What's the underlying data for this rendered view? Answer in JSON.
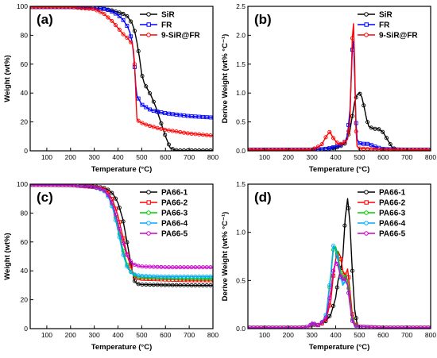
{
  "chart_data": [
    {
      "panel": "(a)",
      "type": "line",
      "xlabel": "Temperature (°C)",
      "ylabel": "Weight (wt%)",
      "xlim": [
        30,
        800
      ],
      "ylim": [
        0,
        100
      ],
      "xticks": [
        100,
        200,
        300,
        400,
        500,
        600,
        700,
        800
      ],
      "yticks": [
        0,
        20,
        40,
        60,
        80,
        100
      ],
      "legend_position": "top-right",
      "series": [
        {
          "name": "SiR",
          "color": "#000000",
          "x": [
            30,
            200,
            300,
            350,
            380,
            400,
            420,
            440,
            460,
            470,
            480,
            490,
            500,
            510,
            520,
            540,
            560,
            580,
            600,
            620,
            640,
            660,
            700,
            800
          ],
          "y": [
            99.5,
            99.5,
            99,
            98,
            97,
            96,
            95,
            93,
            88,
            83,
            75,
            65,
            53,
            47,
            44,
            38,
            30,
            20,
            10,
            2,
            0.5,
            0.3,
            0.3,
            0.3
          ]
        },
        {
          "name": "FR",
          "color": "#0000ff",
          "x": [
            30,
            200,
            300,
            350,
            380,
            400,
            420,
            440,
            450,
            460,
            465,
            470,
            475,
            480,
            490,
            500,
            540,
            600,
            700,
            800
          ],
          "y": [
            99.5,
            99.5,
            99,
            98,
            96,
            94,
            91,
            86,
            82,
            75,
            68,
            58,
            45,
            38,
            35,
            32,
            28,
            26,
            24,
            23
          ]
        },
        {
          "name": "9-SiR@FR",
          "color": "#ff0000",
          "x": [
            30,
            200,
            300,
            340,
            360,
            380,
            400,
            420,
            440,
            450,
            460,
            465,
            470,
            475,
            478,
            480,
            490,
            520,
            560,
            600,
            700,
            800
          ],
          "y": [
            99.5,
            99.5,
            98,
            95,
            92,
            89,
            85,
            81,
            78,
            76,
            74,
            70,
            60,
            40,
            28,
            22,
            20,
            18,
            16,
            14.5,
            12,
            10.5
          ]
        }
      ]
    },
    {
      "panel": "(b)",
      "type": "line",
      "xlabel": "Temperature (°C)",
      "ylabel": "Derive Weight (wt% °C⁻¹)",
      "xlim": [
        30,
        800
      ],
      "ylim": [
        0,
        2.5
      ],
      "xticks": [
        100,
        200,
        300,
        400,
        500,
        600,
        700,
        800
      ],
      "yticks": [
        0.0,
        0.5,
        1.0,
        1.5,
        2.0,
        2.5
      ],
      "legend_position": "top-right",
      "series": [
        {
          "name": "SiR",
          "color": "#000000",
          "x": [
            30,
            300,
            350,
            400,
            420,
            440,
            460,
            470,
            480,
            490,
            500,
            510,
            520,
            530,
            540,
            560,
            580,
            600,
            620,
            640,
            660,
            800
          ],
          "y": [
            0.02,
            0.02,
            0.03,
            0.05,
            0.08,
            0.13,
            0.35,
            0.6,
            0.85,
            0.97,
            1.0,
            0.93,
            0.75,
            0.55,
            0.42,
            0.38,
            0.38,
            0.32,
            0.18,
            0.05,
            0.02,
            0.02
          ]
        },
        {
          "name": "FR",
          "color": "#0000ff",
          "x": [
            30,
            300,
            350,
            380,
            400,
            420,
            440,
            450,
            460,
            465,
            470,
            475,
            480,
            485,
            490,
            500,
            520,
            540,
            560,
            600,
            700,
            800
          ],
          "y": [
            0.02,
            0.02,
            0.03,
            0.05,
            0.07,
            0.1,
            0.16,
            0.28,
            0.7,
            1.2,
            1.75,
            1.9,
            1.3,
            0.55,
            0.2,
            0.13,
            0.12,
            0.12,
            0.08,
            0.03,
            0.02,
            0.02
          ]
        },
        {
          "name": "9-SiR@FR",
          "color": "#ff0000",
          "x": [
            30,
            300,
            340,
            360,
            375,
            390,
            410,
            430,
            450,
            460,
            465,
            470,
            475,
            480,
            485,
            490,
            500,
            600,
            800
          ],
          "y": [
            0.02,
            0.02,
            0.1,
            0.25,
            0.33,
            0.22,
            0.12,
            0.12,
            0.2,
            0.55,
            1.2,
            1.95,
            2.2,
            1.5,
            0.4,
            0.08,
            0.04,
            0.02,
            0.02
          ]
        }
      ]
    },
    {
      "panel": "(c)",
      "type": "line",
      "xlabel": "Temperature (°C)",
      "ylabel": "Weight (wt%)",
      "xlim": [
        30,
        800
      ],
      "ylim": [
        0,
        100
      ],
      "xticks": [
        100,
        200,
        300,
        400,
        500,
        600,
        700,
        800
      ],
      "yticks": [
        0,
        20,
        40,
        60,
        80,
        100
      ],
      "legend_position": "top-right",
      "series": [
        {
          "name": "PA66-1",
          "color": "#000000",
          "x": [
            30,
            200,
            300,
            340,
            360,
            380,
            400,
            420,
            440,
            460,
            470,
            480,
            500,
            600,
            700,
            800
          ],
          "y": [
            99.5,
            99.3,
            98.5,
            97.5,
            96,
            93,
            87,
            76,
            58,
            40,
            33,
            31,
            30.5,
            30.2,
            30,
            30
          ]
        },
        {
          "name": "PA66-2",
          "color": "#ff0000",
          "x": [
            30,
            200,
            300,
            340,
            360,
            380,
            400,
            420,
            440,
            460,
            470,
            480,
            500,
            600,
            700,
            800
          ],
          "y": [
            99.5,
            99.3,
            98,
            96.5,
            94,
            88,
            78,
            64,
            50,
            40,
            36,
            35,
            34.5,
            34,
            33.5,
            33.5
          ]
        },
        {
          "name": "PA66-3",
          "color": "#00cc00",
          "x": [
            30,
            200,
            300,
            340,
            360,
            380,
            400,
            420,
            440,
            460,
            480,
            500,
            600,
            700,
            800
          ],
          "y": [
            99.5,
            99.3,
            98,
            96,
            92,
            84,
            70,
            55,
            43,
            38,
            36,
            35.5,
            35,
            34.8,
            34.5
          ]
        },
        {
          "name": "PA66-4",
          "color": "#00aaff",
          "x": [
            30,
            200,
            300,
            340,
            360,
            380,
            400,
            420,
            440,
            460,
            480,
            500,
            600,
            700,
            800
          ],
          "y": [
            99.5,
            99.3,
            98,
            95.5,
            91,
            82,
            68,
            52,
            42,
            38,
            37,
            36.5,
            36,
            36,
            36
          ]
        },
        {
          "name": "PA66-5",
          "color": "#cc00cc",
          "x": [
            30,
            200,
            300,
            340,
            360,
            380,
            400,
            420,
            440,
            460,
            480,
            500,
            600,
            700,
            800
          ],
          "y": [
            99.5,
            99.3,
            98,
            96,
            92,
            85,
            73,
            60,
            50,
            45,
            43.5,
            43,
            42.5,
            42.5,
            42.5
          ]
        }
      ]
    },
    {
      "panel": "(d)",
      "type": "line",
      "xlabel": "Temperature (°C)",
      "ylabel": "Derive Weight (wt% °C⁻¹)",
      "xlim": [
        30,
        800
      ],
      "ylim": [
        0,
        1.5
      ],
      "xticks": [
        100,
        200,
        300,
        400,
        500,
        600,
        700,
        800
      ],
      "yticks": [
        0.0,
        0.5,
        1.0,
        1.5
      ],
      "legend_position": "top-right",
      "series": [
        {
          "name": "PA66-1",
          "color": "#000000",
          "x": [
            30,
            250,
            290,
            300,
            320,
            340,
            360,
            380,
            400,
            410,
            420,
            430,
            440,
            450,
            460,
            470,
            480,
            490,
            500,
            600,
            800
          ],
          "y": [
            0.01,
            0.01,
            0.02,
            0.05,
            0.03,
            0.05,
            0.08,
            0.15,
            0.32,
            0.5,
            0.6,
            0.75,
            1.15,
            1.35,
            1.1,
            0.6,
            0.2,
            0.05,
            0.02,
            0.01,
            0.01
          ]
        },
        {
          "name": "PA66-2",
          "color": "#ff0000",
          "x": [
            30,
            250,
            290,
            300,
            320,
            340,
            360,
            380,
            390,
            400,
            410,
            420,
            430,
            440,
            450,
            460,
            470,
            480,
            500,
            600,
            800
          ],
          "y": [
            0.01,
            0.01,
            0.02,
            0.05,
            0.03,
            0.05,
            0.1,
            0.3,
            0.55,
            0.72,
            0.8,
            0.75,
            0.6,
            0.55,
            0.62,
            0.4,
            0.15,
            0.05,
            0.02,
            0.01,
            0.01
          ]
        },
        {
          "name": "PA66-3",
          "color": "#00cc00",
          "x": [
            30,
            250,
            290,
            300,
            320,
            340,
            360,
            380,
            390,
            400,
            410,
            420,
            430,
            440,
            450,
            460,
            470,
            480,
            500,
            600,
            800
          ],
          "y": [
            0.01,
            0.01,
            0.02,
            0.06,
            0.03,
            0.06,
            0.15,
            0.55,
            0.82,
            0.85,
            0.75,
            0.6,
            0.5,
            0.55,
            0.5,
            0.3,
            0.1,
            0.04,
            0.02,
            0.01,
            0.01
          ]
        },
        {
          "name": "PA66-4",
          "color": "#00aaff",
          "x": [
            30,
            250,
            290,
            300,
            320,
            340,
            360,
            380,
            390,
            400,
            410,
            420,
            430,
            440,
            450,
            460,
            470,
            480,
            500,
            600,
            800
          ],
          "y": [
            0.01,
            0.01,
            0.02,
            0.06,
            0.03,
            0.06,
            0.15,
            0.58,
            0.86,
            0.82,
            0.7,
            0.55,
            0.45,
            0.5,
            0.45,
            0.25,
            0.08,
            0.03,
            0.02,
            0.01,
            0.01
          ]
        },
        {
          "name": "PA66-5",
          "color": "#cc00cc",
          "x": [
            30,
            250,
            290,
            300,
            320,
            340,
            360,
            380,
            390,
            400,
            410,
            420,
            430,
            440,
            450,
            460,
            470,
            480,
            500,
            600,
            800
          ],
          "y": [
            0.01,
            0.01,
            0.02,
            0.07,
            0.03,
            0.06,
            0.12,
            0.4,
            0.6,
            0.7,
            0.65,
            0.55,
            0.5,
            0.52,
            0.45,
            0.25,
            0.08,
            0.03,
            0.02,
            0.01,
            0.01
          ]
        }
      ]
    }
  ]
}
